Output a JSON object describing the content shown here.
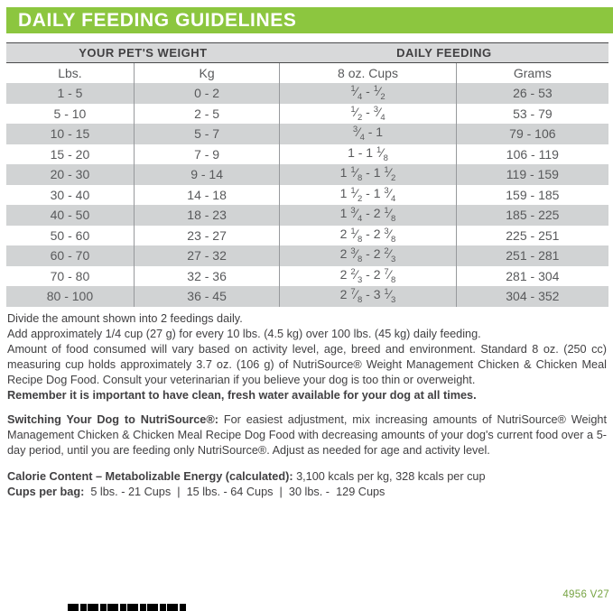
{
  "title": "DAILY FEEDING GUIDELINES",
  "table": {
    "group_headers": [
      "YOUR PET'S WEIGHT",
      "DAILY FEEDING"
    ],
    "columns": [
      "Lbs.",
      "Kg",
      "8 oz. Cups",
      "Grams"
    ],
    "rows": [
      [
        "1 - 5",
        "0 - 2",
        "1/4 - 1/2",
        "26 - 53"
      ],
      [
        "5 - 10",
        "2 - 5",
        "1/2 - 3/4",
        "53 - 79"
      ],
      [
        "10 - 15",
        "5 - 7",
        "3/4 - 1",
        "79 - 106"
      ],
      [
        "15 - 20",
        "7 - 9",
        "1 - 1 1/8",
        "106 - 119"
      ],
      [
        "20 - 30",
        "9 - 14",
        "1 1/8 - 1 1/2",
        "119 - 159"
      ],
      [
        "30 - 40",
        "14 - 18",
        "1 1/2 - 1 3/4",
        "159 - 185"
      ],
      [
        "40 - 50",
        "18 - 23",
        "1 3/4 - 2 1/8",
        "185 - 225"
      ],
      [
        "50 - 60",
        "23 - 27",
        "2 1/8 - 2 3/8",
        "225 - 251"
      ],
      [
        "60 - 70",
        "27 - 32",
        "2 3/8 - 2 2/3",
        "251 - 281"
      ],
      [
        "70 - 80",
        "32 - 36",
        "2 2/3 - 2 7/8",
        "281 - 304"
      ],
      [
        "80 - 100",
        "36 - 45",
        "2 7/8 - 3 1/3",
        "304 - 352"
      ]
    ]
  },
  "notes": {
    "line1": "Divide the amount shown into 2 feedings daily.",
    "line2": "Add approximately 1/4 cup (27 g) for every 10 lbs. (4.5 kg) over 100 lbs. (45 kg) daily feeding.",
    "line3": "Amount of food consumed will vary based on activity level, age, breed and environment. Standard 8 oz. (250 cc) measuring cup holds approximately 3.7 oz. (106 g) of NutriSource® Weight Management Chicken & Chicken Meal Recipe Dog Food. Consult your veterinarian if you believe your dog is too thin or overweight.",
    "line4_bold": "Remember it is important to have clean, fresh water available for your dog at all times."
  },
  "switching": {
    "lead_bold": "Switching Your Dog to NutriSource®:",
    "body": " For easiest adjustment, mix increasing amounts of NutriSource® Weight Management Chicken & Chicken Meal Recipe Dog Food with decreasing amounts of your dog's current food over a 5-day period, until you are feeding only NutriSource®. Adjust as needed for age and activity level."
  },
  "calorie": {
    "lead_bold": "Calorie Content – Metabolizable Energy (calculated):",
    "body": " 3,100 kcals per kg, 328 kcals per cup"
  },
  "cups_per_bag": {
    "lead_bold": "Cups per bag:",
    "body": "  5 lbs. - 21 Cups  |  15 lbs. - 64 Cups  |  30 lbs. -  129 Cups"
  },
  "footer": {
    "code": "4956 V27"
  },
  "colors": {
    "brand_green": "#8CC63F",
    "row_gray": "#D1D3D4",
    "group_header_gray": "#D8D9DA",
    "table_text": "#58595B",
    "body_text": "#414042",
    "footer_green": "#76A342"
  }
}
